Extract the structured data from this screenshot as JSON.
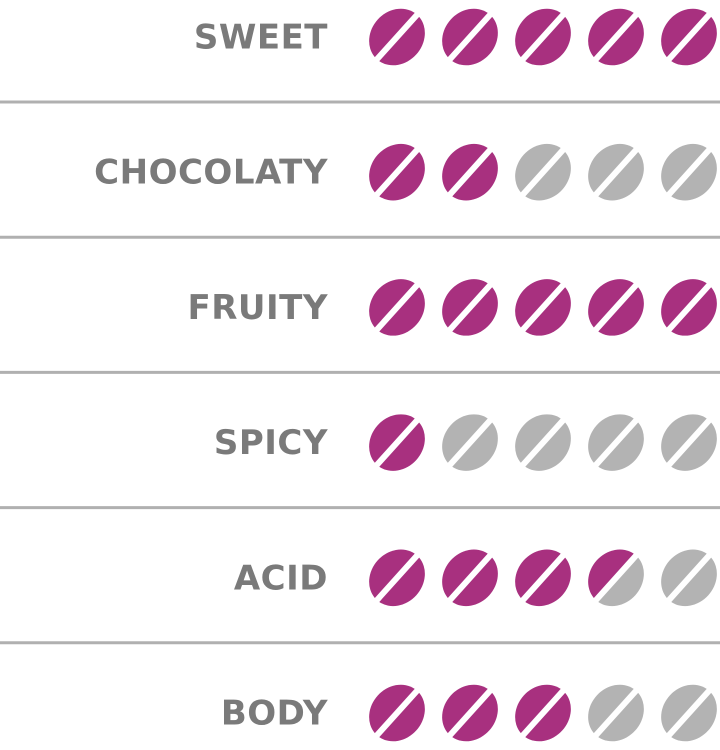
{
  "chart_data": {
    "type": "rating",
    "categories": [
      "SWEET",
      "CHOCOLATY",
      "FRUITY",
      "SPICY",
      "ACID",
      "BODY"
    ],
    "values": [
      5,
      2,
      5,
      1,
      3.5,
      3
    ],
    "xlim": [
      0,
      5
    ],
    "color": "#a8307f",
    "empty_color": "#b3b3b3"
  }
}
